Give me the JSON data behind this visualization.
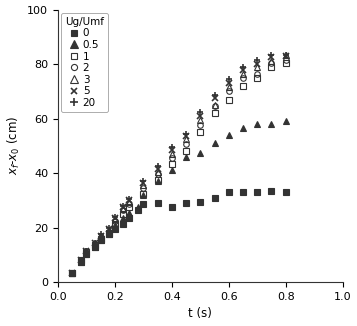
{
  "title": "",
  "xlabel": "t (s)",
  "ylabel": "x$_f$-x$_0$ (cm)",
  "xlim": [
    0,
    1.0
  ],
  "ylim": [
    0,
    100
  ],
  "xticks": [
    0.0,
    0.2,
    0.4,
    0.6,
    0.8,
    1.0
  ],
  "yticks": [
    0,
    20,
    40,
    60,
    80,
    100
  ],
  "legend_title": "Ug/Umf",
  "series": [
    {
      "label": "0",
      "marker": "s",
      "fillstyle": "full",
      "color": "#333333",
      "markersize": 4,
      "t": [
        0.05,
        0.08,
        0.1,
        0.13,
        0.15,
        0.18,
        0.2,
        0.23,
        0.25,
        0.28,
        0.3,
        0.35,
        0.4,
        0.45,
        0.5,
        0.55,
        0.6,
        0.65,
        0.7,
        0.75,
        0.8
      ],
      "x": [
        3.5,
        7.5,
        10.5,
        13.0,
        15.5,
        17.5,
        19.5,
        21.5,
        23.5,
        26.5,
        28.5,
        29.0,
        27.5,
        29.0,
        29.5,
        31.0,
        33.0,
        33.0,
        33.0,
        33.5,
        33.0
      ]
    },
    {
      "label": "0.5",
      "marker": "^",
      "fillstyle": "full",
      "color": "#333333",
      "markersize": 5,
      "t": [
        0.05,
        0.08,
        0.1,
        0.13,
        0.15,
        0.18,
        0.2,
        0.23,
        0.25,
        0.28,
        0.3,
        0.35,
        0.4,
        0.45,
        0.5,
        0.55,
        0.6,
        0.65,
        0.7,
        0.75,
        0.8
      ],
      "x": [
        3.5,
        7.5,
        10.5,
        13.0,
        15.5,
        17.5,
        21.0,
        23.5,
        25.5,
        27.5,
        32.0,
        37.0,
        41.0,
        46.0,
        47.5,
        51.0,
        54.0,
        56.5,
        58.0,
        58.0,
        59.0
      ]
    },
    {
      "label": "1",
      "marker": "s",
      "fillstyle": "none",
      "color": "#333333",
      "markersize": 4,
      "t": [
        0.05,
        0.08,
        0.1,
        0.13,
        0.15,
        0.18,
        0.2,
        0.23,
        0.25,
        0.3,
        0.35,
        0.4,
        0.45,
        0.5,
        0.55,
        0.6,
        0.65,
        0.7,
        0.75,
        0.8
      ],
      "x": [
        3.5,
        8.0,
        11.0,
        13.5,
        16.0,
        18.0,
        21.5,
        25.0,
        27.5,
        32.5,
        37.5,
        43.5,
        48.0,
        55.0,
        62.0,
        67.0,
        72.0,
        75.0,
        79.0,
        80.5
      ]
    },
    {
      "label": "2",
      "marker": "o",
      "fillstyle": "none",
      "color": "#333333",
      "markersize": 4,
      "t": [
        0.05,
        0.08,
        0.1,
        0.13,
        0.15,
        0.18,
        0.2,
        0.23,
        0.25,
        0.3,
        0.35,
        0.4,
        0.45,
        0.5,
        0.55,
        0.6,
        0.65,
        0.7,
        0.75,
        0.8
      ],
      "x": [
        3.5,
        8.0,
        11.5,
        14.0,
        16.5,
        18.5,
        22.5,
        26.5,
        28.5,
        34.5,
        39.5,
        45.5,
        50.5,
        57.5,
        64.5,
        70.0,
        75.0,
        76.5,
        80.5,
        81.5
      ]
    },
    {
      "label": "3",
      "marker": "^",
      "fillstyle": "none",
      "color": "#333333",
      "markersize": 5,
      "t": [
        0.05,
        0.08,
        0.1,
        0.13,
        0.15,
        0.18,
        0.2,
        0.23,
        0.25,
        0.3,
        0.35,
        0.4,
        0.45,
        0.5,
        0.55,
        0.6,
        0.65,
        0.7,
        0.75,
        0.8
      ],
      "x": [
        3.5,
        8.0,
        11.5,
        14.5,
        17.0,
        19.0,
        23.0,
        27.0,
        29.5,
        35.5,
        40.5,
        47.0,
        52.5,
        59.5,
        65.0,
        71.5,
        76.5,
        79.0,
        81.0,
        83.5
      ]
    },
    {
      "label": "5",
      "marker": "x",
      "fillstyle": "full",
      "color": "#333333",
      "markersize": 4,
      "markeredgewidth": 1.2,
      "t": [
        0.05,
        0.08,
        0.1,
        0.13,
        0.15,
        0.18,
        0.2,
        0.23,
        0.25,
        0.3,
        0.35,
        0.4,
        0.45,
        0.5,
        0.55,
        0.6,
        0.65,
        0.7,
        0.75,
        0.8
      ],
      "x": [
        3.5,
        8.0,
        11.5,
        14.5,
        17.0,
        19.5,
        23.5,
        27.5,
        30.0,
        36.5,
        41.5,
        48.5,
        53.5,
        61.0,
        67.5,
        73.0,
        78.0,
        80.0,
        82.5,
        83.0
      ]
    },
    {
      "label": "20",
      "marker": "+",
      "fillstyle": "full",
      "color": "#333333",
      "markersize": 5,
      "markeredgewidth": 1.2,
      "t": [
        0.05,
        0.08,
        0.1,
        0.13,
        0.15,
        0.18,
        0.2,
        0.23,
        0.25,
        0.3,
        0.35,
        0.4,
        0.45,
        0.5,
        0.55,
        0.6,
        0.65,
        0.7,
        0.75,
        0.8
      ],
      "x": [
        3.5,
        8.0,
        11.5,
        14.5,
        17.5,
        20.0,
        24.0,
        28.0,
        30.5,
        37.0,
        42.5,
        49.5,
        54.5,
        62.5,
        68.5,
        74.5,
        79.0,
        81.5,
        83.5,
        83.5
      ]
    }
  ],
  "background_color": "#ffffff",
  "legend_fontsize": 7.5,
  "axis_fontsize": 8.5,
  "tick_fontsize": 8
}
